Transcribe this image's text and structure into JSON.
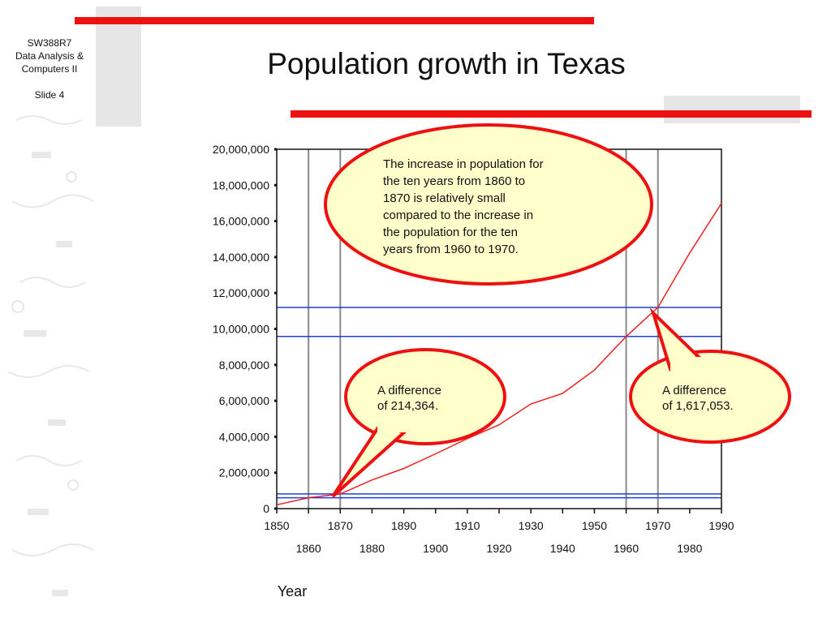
{
  "slide": {
    "course_code": "SW388R7",
    "course_name_1": "Data Analysis &",
    "course_name_2": "Computers II",
    "slide_label": "Slide 4",
    "title": "Population growth in Texas"
  },
  "colors": {
    "accent_red": "#ee1111",
    "decor_grey": "#e6e6e6",
    "series_line": "#ee2222",
    "reference_lines": "#1f3fd6",
    "callout_fill": "#ffffcc",
    "callout_border": "#ee1111"
  },
  "chart_data": {
    "type": "line",
    "title": "",
    "xlabel": "Year",
    "ylabel": "",
    "xlim": [
      1850,
      1990
    ],
    "ylim": [
      0,
      20000000
    ],
    "y_ticks": [
      "0",
      "2,000,000",
      "4,000,000",
      "6,000,000",
      "8,000,000",
      "10,000,000",
      "12,000,000",
      "14,000,000",
      "16,000,000",
      "18,000,000",
      "20,000,000"
    ],
    "x_ticks_top": [
      "1850",
      "1870",
      "1890",
      "1910",
      "1930",
      "1950",
      "1970",
      "1990"
    ],
    "x_ticks_bottom": [
      "1860",
      "1880",
      "1900",
      "1920",
      "1940",
      "1960",
      "1980"
    ],
    "grid": false,
    "series": [
      {
        "x": [
          1850,
          1860,
          1870,
          1880,
          1890,
          1900,
          1910,
          1920,
          1930,
          1940,
          1950,
          1960,
          1970,
          1980,
          1990
        ],
        "values": [
          212592,
          604215,
          818579,
          1591749,
          2235527,
          3048710,
          3896542,
          4663228,
          5824715,
          6414824,
          7711194,
          9579677,
          11196730,
          14229191,
          16986510
        ]
      }
    ],
    "vertical_reference_years": [
      1860,
      1870,
      1960,
      1970
    ],
    "horizontal_reference_values": [
      604215,
      818579,
      9579677,
      11196730
    ],
    "annotations": [
      {
        "text": "The increase in population for the ten years  from 1860 to 1870 is relatively small compared to the increase in the population for the ten years from 1960 to 1970."
      },
      {
        "text": "A difference of 214,364."
      },
      {
        "text": "A difference of 1,617,053."
      }
    ]
  }
}
